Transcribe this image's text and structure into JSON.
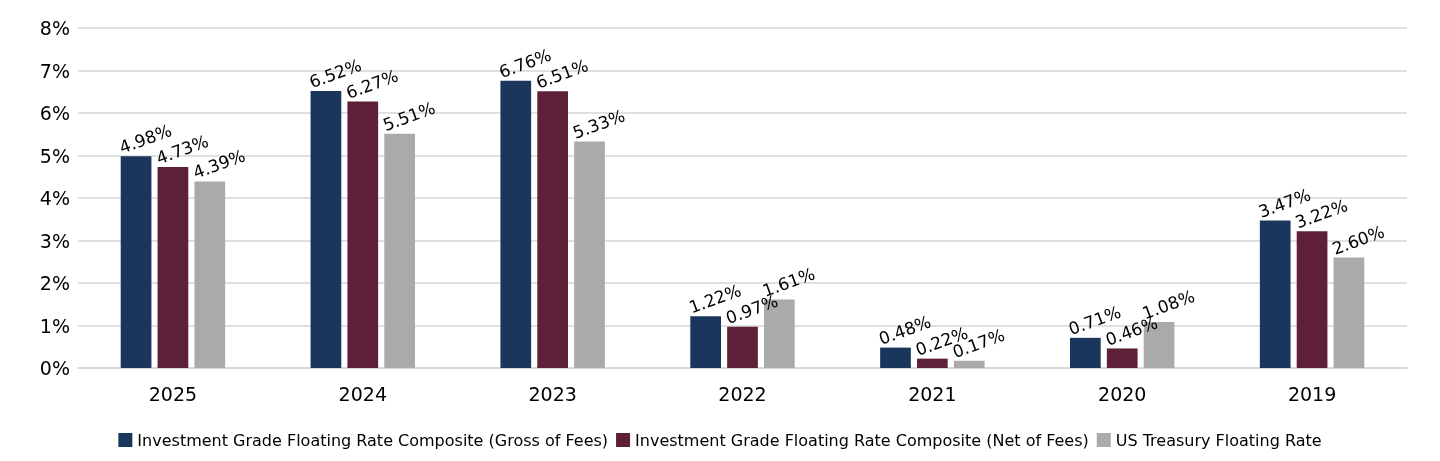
{
  "chart_data": {
    "type": "bar",
    "categories": [
      "2025",
      "2024",
      "2023",
      "2022",
      "2021",
      "2020",
      "2019"
    ],
    "series": [
      {
        "name": "Investment Grade Floating Rate Composite (Gross of Fees)",
        "color": "#1b365d",
        "values": [
          4.98,
          6.52,
          6.76,
          1.22,
          0.48,
          0.71,
          3.47
        ],
        "value_labels": [
          "4.98%",
          "6.52%",
          "6.76%",
          "1.22%",
          "0.48%",
          "0.71%",
          "3.47%"
        ]
      },
      {
        "name": "Investment Grade Floating Rate Composite (Net of Fees)",
        "color": "#5e1f38",
        "values": [
          4.73,
          6.27,
          6.51,
          0.97,
          0.22,
          0.46,
          3.22
        ],
        "value_labels": [
          "4.73%",
          "6.27%",
          "6.51%",
          "0.97%",
          "0.22%",
          "0.46%",
          "3.22%"
        ]
      },
      {
        "name": "US Treasury Floating Rate",
        "color": "#aaaaaa",
        "values": [
          4.39,
          5.51,
          5.33,
          1.61,
          0.17,
          1.08,
          2.6
        ],
        "value_labels": [
          "4.39%",
          "5.51%",
          "5.33%",
          "1.61%",
          "0.17%",
          "1.08%",
          "2.60%"
        ]
      }
    ],
    "ylim": [
      0,
      8
    ],
    "yticks": [
      {
        "value": 0,
        "label": "0%"
      },
      {
        "value": 1,
        "label": "1%"
      },
      {
        "value": 2,
        "label": "2%"
      },
      {
        "value": 3,
        "label": "3%"
      },
      {
        "value": 4,
        "label": "4%"
      },
      {
        "value": 5,
        "label": "5%"
      },
      {
        "value": 6,
        "label": "6%"
      },
      {
        "value": 7,
        "label": "7%"
      },
      {
        "value": 8,
        "label": "8%"
      }
    ],
    "grid": "y",
    "legend": "bottom"
  }
}
